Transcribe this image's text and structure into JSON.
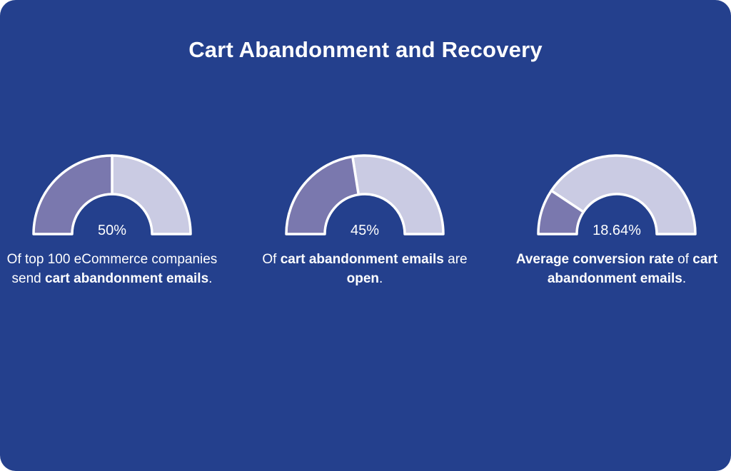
{
  "title": "Cart Abandonment and Recovery",
  "colors": {
    "background": "#24408d",
    "filled": "#7a78ae",
    "remaining": "#cacbe3",
    "stroke": "#ffffff",
    "text": "#ffffff"
  },
  "chart_data": [
    {
      "type": "gauge",
      "value": 50,
      "max": 100,
      "value_label": "50%",
      "caption": [
        {
          "text": "Of top 100 eCommerce companies send ",
          "bold": false
        },
        {
          "text": "cart abandonment emails",
          "bold": true
        },
        {
          "text": ".",
          "bold": false
        }
      ]
    },
    {
      "type": "gauge",
      "value": 45,
      "max": 100,
      "value_label": "45%",
      "caption": [
        {
          "text": "Of ",
          "bold": false
        },
        {
          "text": "cart abandonment emails",
          "bold": true
        },
        {
          "text": " are ",
          "bold": false
        },
        {
          "text": "open",
          "bold": true
        },
        {
          "text": ".",
          "bold": false
        }
      ]
    },
    {
      "type": "gauge",
      "value": 18.64,
      "max": 100,
      "value_label": "18.64%",
      "caption": [
        {
          "text": "Average conversion rate",
          "bold": true
        },
        {
          "text": " of ",
          "bold": false
        },
        {
          "text": "cart abandonment emails",
          "bold": true
        },
        {
          "text": ".",
          "bold": false
        }
      ]
    }
  ]
}
